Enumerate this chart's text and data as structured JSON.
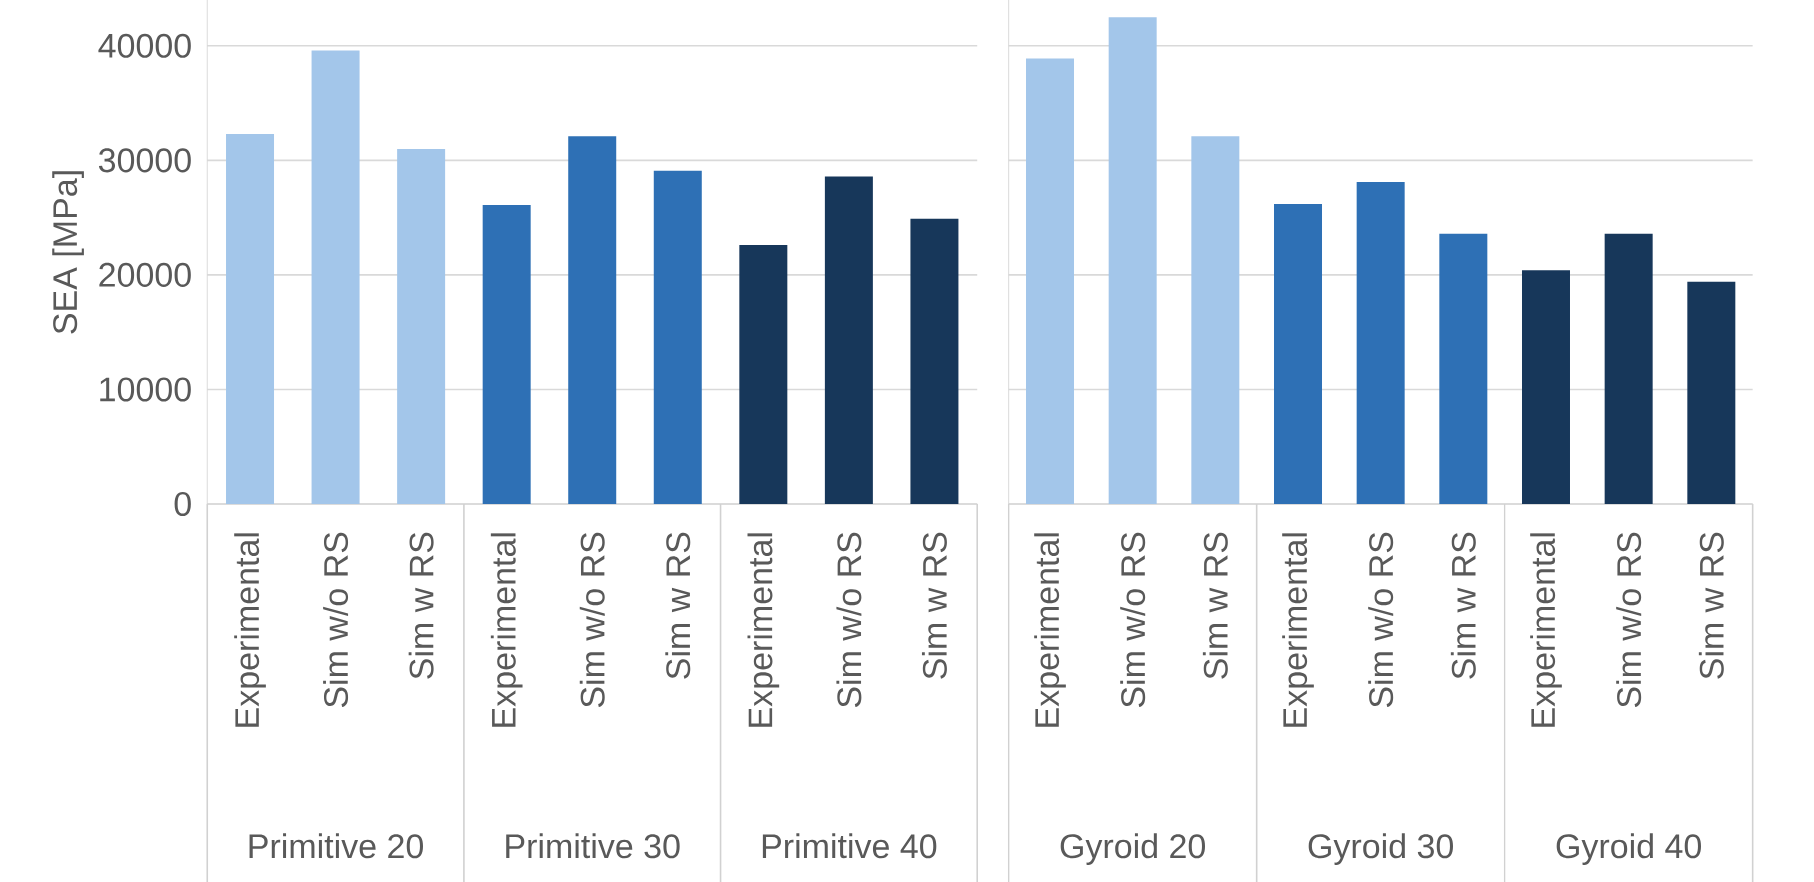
{
  "chart_data": [
    {
      "type": "bar",
      "ylabel": "SEA [MPa]",
      "categories": [
        "Experimental",
        "Sim w/o RS",
        "Sim w RS",
        "Experimental",
        "Sim w/o RS",
        "Sim w RS",
        "Experimental",
        "Sim w/o RS",
        "Sim w RS"
      ],
      "values": [
        32300,
        39600,
        31000,
        26100,
        32100,
        29100,
        22600,
        28600,
        24900
      ],
      "colors": [
        "#a3c6ea",
        "#a3c6ea",
        "#a3c6ea",
        "#2e70b5",
        "#2e70b5",
        "#2e70b5",
        "#17375a",
        "#17375a",
        "#17375a"
      ],
      "annotations": [
        "Primitive 20",
        "Primitive 30",
        "Primitive 40"
      ],
      "ylim": [
        0,
        44000
      ],
      "yticks": [
        0,
        10000,
        20000,
        30000,
        40000
      ],
      "grid": "y"
    },
    {
      "type": "bar",
      "categories": [
        "Experimental",
        "Sim w/o RS",
        "Sim w RS",
        "Experimental",
        "Sim w/o RS",
        "Sim w RS",
        "Experimental",
        "Sim w/o RS",
        "Sim w RS"
      ],
      "values": [
        38900,
        42500,
        32100,
        26200,
        28100,
        23600,
        20400,
        23600,
        19400
      ],
      "colors": [
        "#a3c6ea",
        "#a3c6ea",
        "#a3c6ea",
        "#2e70b5",
        "#2e70b5",
        "#2e70b5",
        "#17375a",
        "#17375a",
        "#17375a"
      ],
      "annotations": [
        "Gyroid 20",
        "Gyroid 30",
        "Gyroid 40"
      ],
      "ylim": [
        0,
        44000
      ],
      "yticks": [
        0,
        10000,
        20000,
        30000,
        40000
      ],
      "grid": "y",
      "tick_labels": "x"
    }
  ]
}
